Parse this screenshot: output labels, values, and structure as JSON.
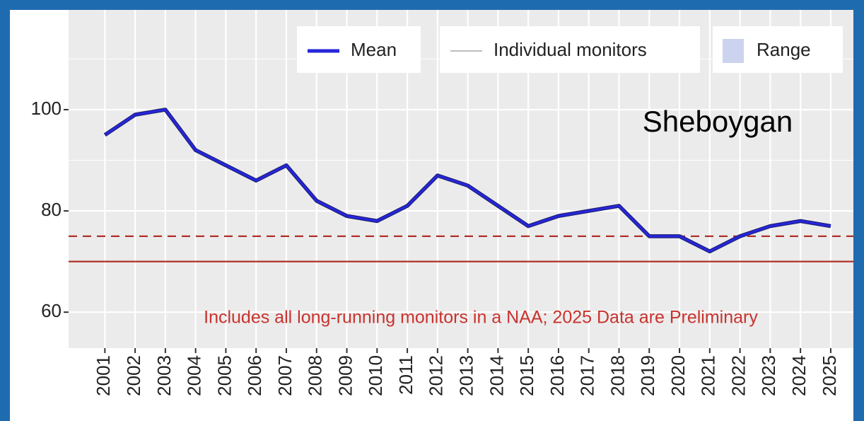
{
  "chart_data": {
    "type": "line",
    "annotation": "Sheboygan",
    "note": "Includes all long-running monitors in a NAA; 2025 Data are Preliminary",
    "x": [
      2001,
      2002,
      2003,
      2004,
      2005,
      2006,
      2007,
      2008,
      2009,
      2010,
      2011,
      2012,
      2013,
      2014,
      2015,
      2016,
      2017,
      2018,
      2019,
      2020,
      2021,
      2022,
      2023,
      2024,
      2025
    ],
    "series": [
      {
        "name": "Mean",
        "color": "#2626d9",
        "values": [
          95,
          99,
          100,
          92,
          89,
          86,
          89,
          82,
          79,
          78,
          81,
          87,
          85,
          81,
          77,
          79,
          80,
          81,
          75,
          75,
          72,
          75,
          77,
          78,
          77
        ]
      }
    ],
    "extra_legend": [
      {
        "name": "Individual monitors",
        "color": "#bdbdbd",
        "key": "line"
      },
      {
        "name": "Range",
        "color": "#ccd3ee",
        "key": "fill"
      }
    ],
    "hlines": [
      {
        "value": 75,
        "style": "dashed",
        "color": "#b0302a"
      },
      {
        "value": 70,
        "style": "solid",
        "color": "#b0302a"
      }
    ],
    "xlim": [
      1999.8,
      2025.75
    ],
    "xticks": [
      2001,
      2002,
      2003,
      2004,
      2005,
      2006,
      2007,
      2008,
      2009,
      2010,
      2011,
      2012,
      2013,
      2014,
      2015,
      2016,
      2017,
      2018,
      2019,
      2020,
      2021,
      2022,
      2023,
      2024,
      2025
    ],
    "ylim": [
      52.9,
      119.7
    ],
    "yticks": [
      60,
      80,
      100
    ],
    "y_minor_ticks": [
      70,
      90,
      110
    ],
    "grid": true
  }
}
